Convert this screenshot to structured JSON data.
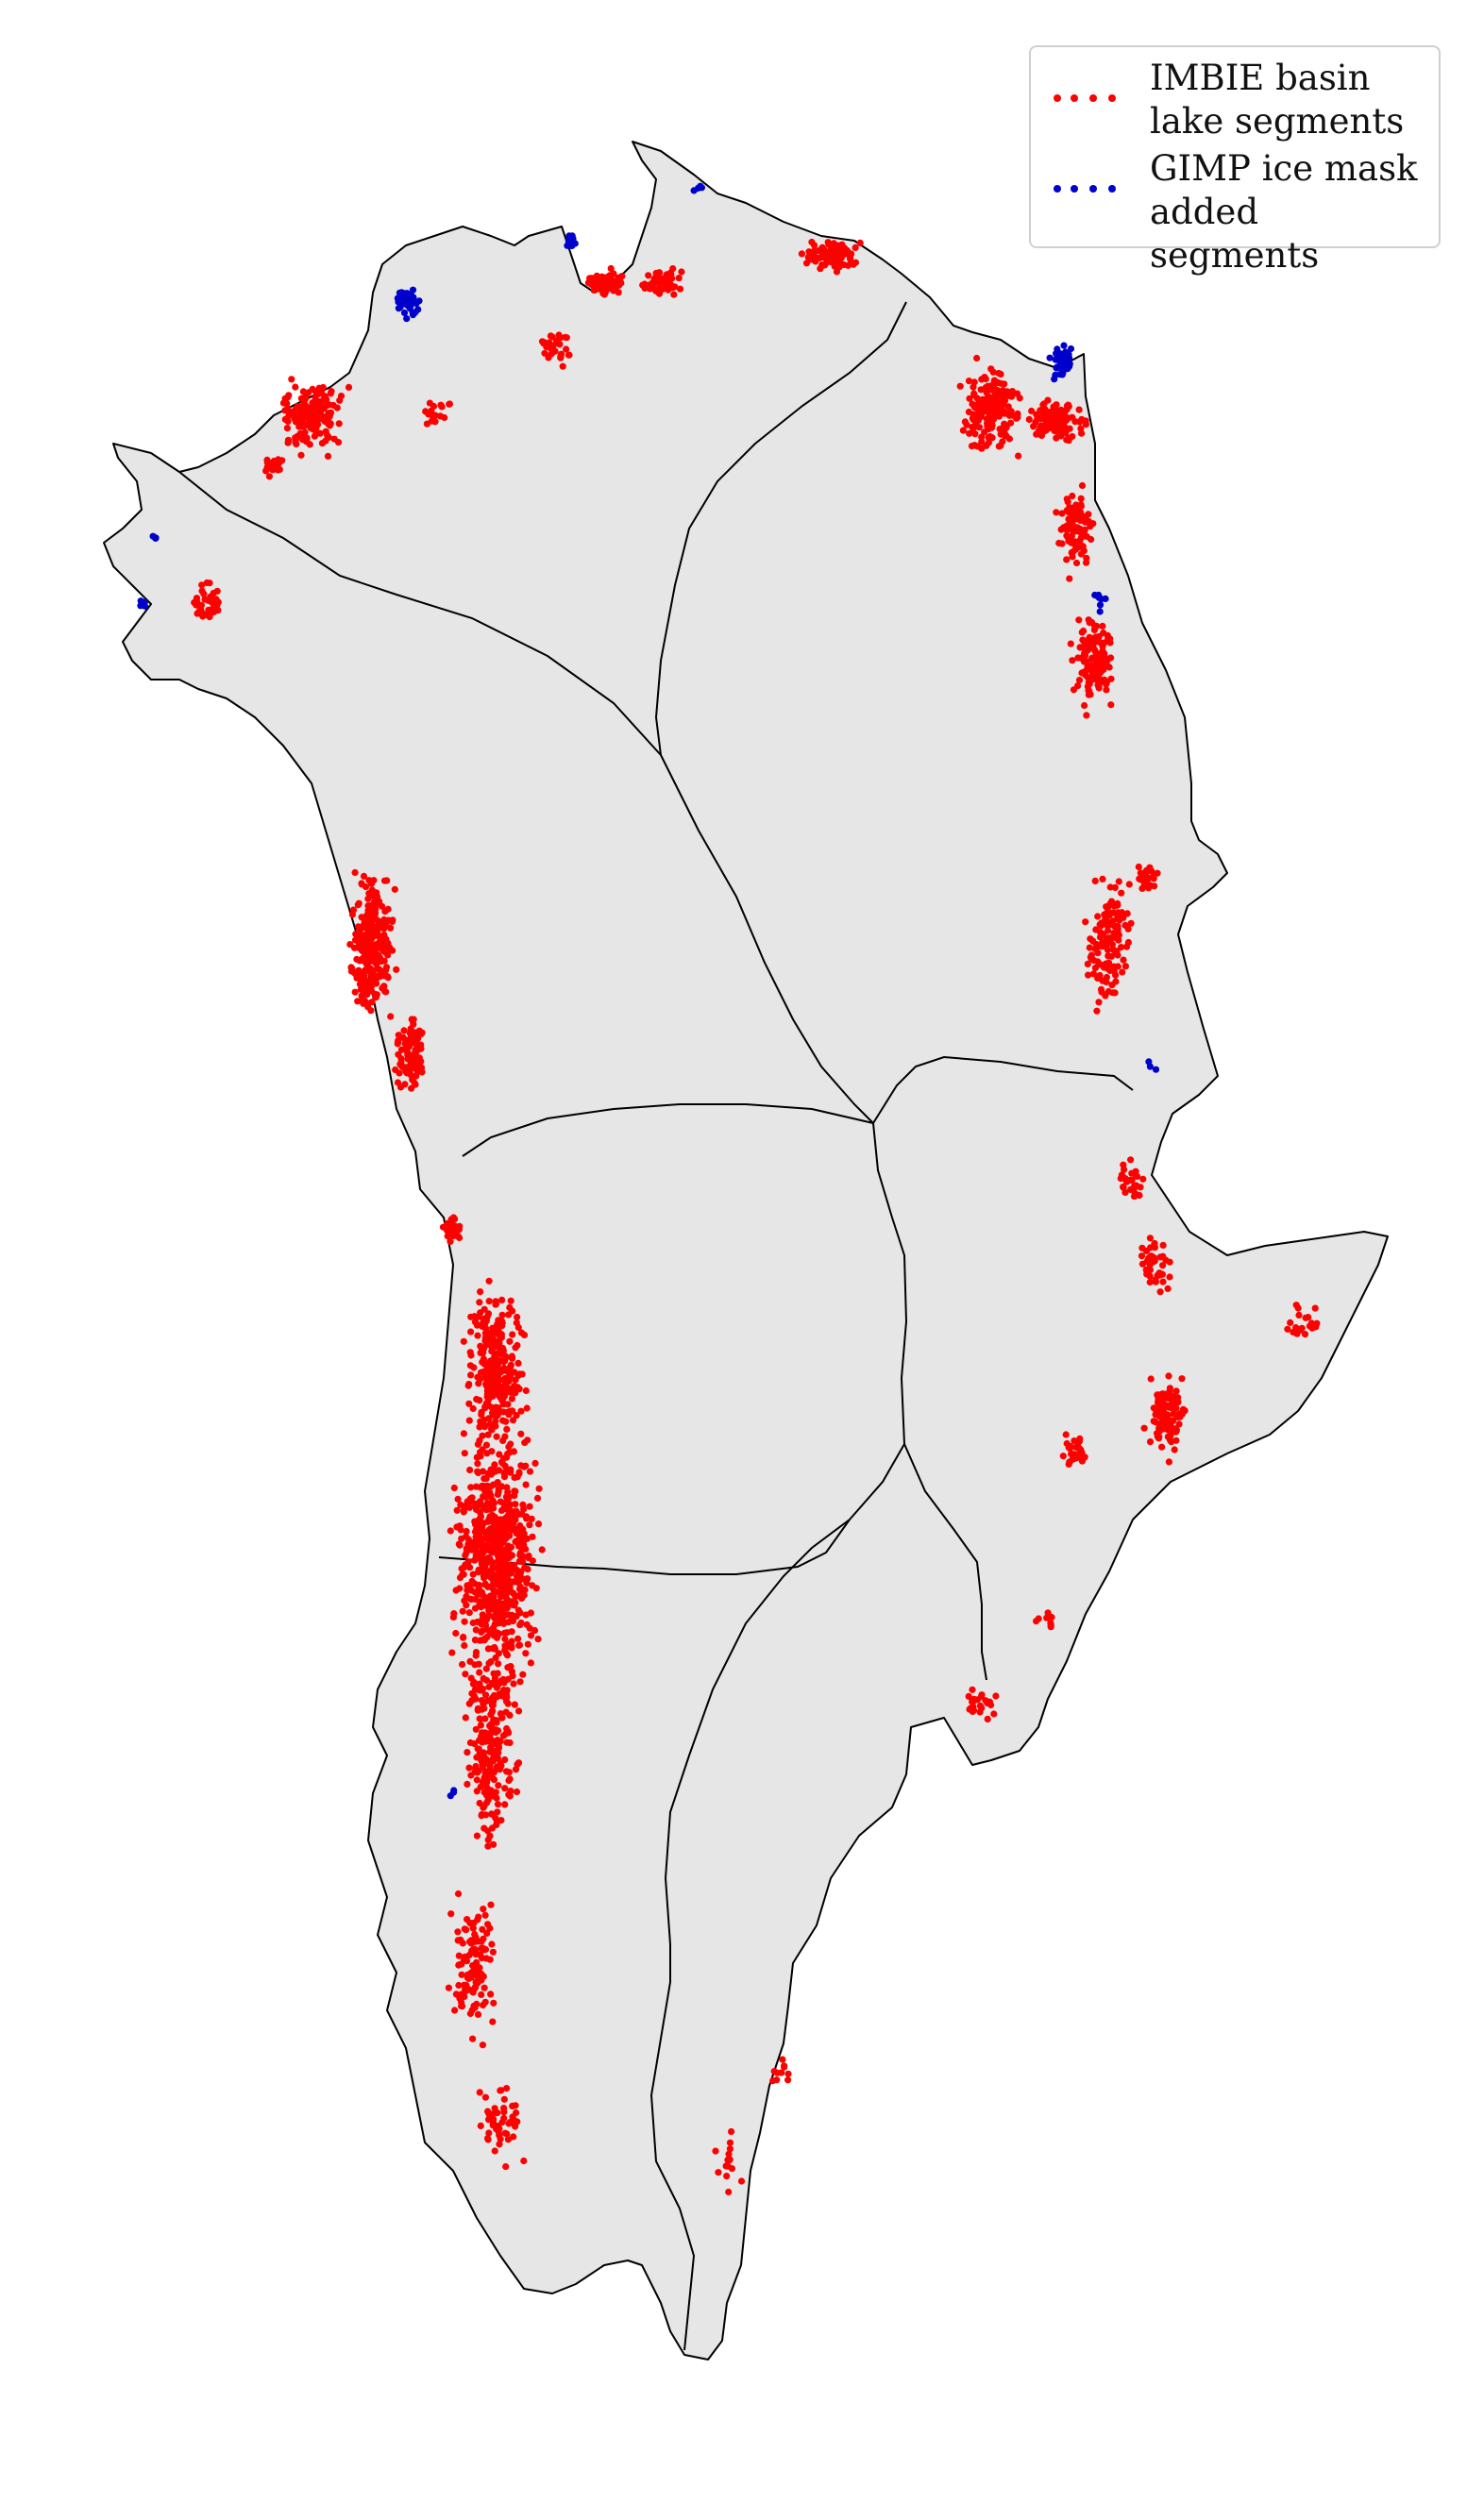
{
  "map": {
    "subject": "Greenland ice sheet drainage basins",
    "land_color": "#e6e6e6",
    "coast_color": "#000000",
    "basin_line_color": "#000000"
  },
  "legend": {
    "entries": [
      {
        "label": "IMBIE basin\nlake segments",
        "color": "#ff0000",
        "marker": "dots"
      },
      {
        "label": "GIMP ice mask\nadded segments",
        "color": "#0000cc",
        "marker": "dots"
      }
    ]
  },
  "chart_data": {
    "type": "scatter",
    "title": "",
    "xlabel": "",
    "ylabel": "",
    "grid": false,
    "legend_placement": "top-right",
    "series": [
      {
        "name": "IMBIE basin lake segments",
        "color": "#ff0000",
        "description_values": "dense clusters along western margin, north, and northeast coasts; sparse along southeast"
      },
      {
        "name": "GIMP ice mask added segments",
        "color": "#0000cc",
        "description_values": "small clusters at northern outlet glaciers and northeast coast"
      }
    ]
  }
}
